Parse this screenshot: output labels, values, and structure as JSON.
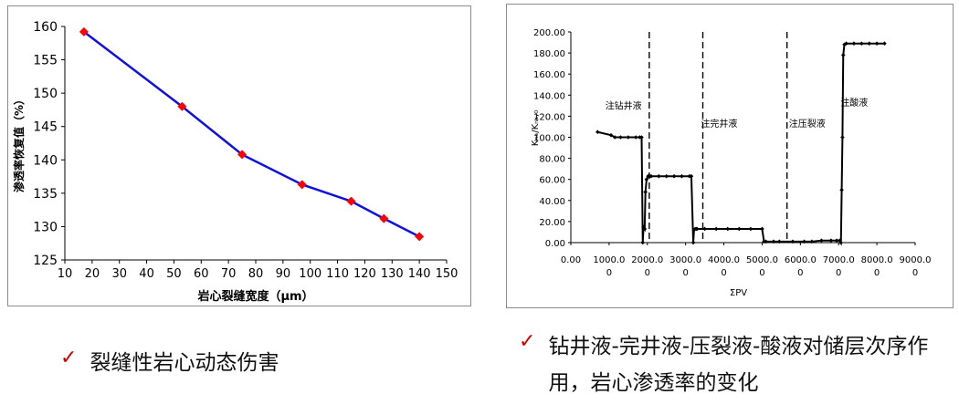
{
  "chart_data": [
    {
      "type": "line",
      "title": "",
      "xlabel": "岩心裂缝宽度（μm）",
      "ylabel": "渗透率恢复值（%）",
      "xlim": [
        10,
        150
      ],
      "ylim": [
        125,
        160
      ],
      "xticks": [
        "10",
        "20",
        "30",
        "40",
        "50",
        "60",
        "70",
        "80",
        "90",
        "100",
        "110",
        "120",
        "130",
        "140",
        "150"
      ],
      "yticks": [
        "125",
        "130",
        "135",
        "140",
        "145",
        "150",
        "155",
        "160"
      ],
      "grid": false,
      "line_color": "#1010e0",
      "marker_color": "#ff0000",
      "x": [
        17,
        53,
        75,
        97,
        115,
        127,
        140
      ],
      "y": [
        159.2,
        148.0,
        140.8,
        136.3,
        133.8,
        131.2,
        128.5
      ]
    },
    {
      "type": "line",
      "title": "",
      "xlabel": "ΣPV",
      "ylabel": "Kₙₐ/Kₙₐ,₀",
      "xlim": [
        0,
        9000
      ],
      "ylim": [
        0,
        200
      ],
      "xticks": [
        "0.00",
        "1000.0\n0",
        "2000.0\n0",
        "3000.0\n0",
        "4000.0\n0",
        "5000.0\n0",
        "6000.0\n0",
        "7000.0\n0",
        "8000.0\n0",
        "9000.0\n0"
      ],
      "yticks": [
        "0.00",
        "20.00",
        "40.00",
        "60.00",
        "80.00",
        "100.00",
        "120.00",
        "140.00",
        "160.00",
        "180.00",
        "200.00"
      ],
      "grid": false,
      "line_color": "#000000",
      "marker_color": "#000000",
      "dashed_lines": [
        2050,
        3450,
        5650
      ],
      "annotations": [
        {
          "text": "注钻井液",
          "x": 900,
          "y": 127
        },
        {
          "text": "注完井液",
          "x": 3400,
          "y": 110
        },
        {
          "text": "注压裂液",
          "x": 5700,
          "y": 110
        },
        {
          "text": "注酸液",
          "x": 7050,
          "y": 130
        }
      ],
      "x": [
        700,
        1050,
        1150,
        1300,
        1500,
        1700,
        1800,
        1850,
        1880,
        1900,
        1930,
        1950,
        1980,
        2020,
        2060,
        2100,
        2300,
        2500,
        2700,
        2900,
        3100,
        3150,
        3200,
        3220,
        3250,
        3280,
        3300,
        3500,
        3800,
        4100,
        4400,
        4700,
        5000,
        5050,
        5100,
        5300,
        5450,
        5800,
        6100,
        6300,
        6550,
        6800,
        6950,
        7030,
        7060,
        7080,
        7100,
        7120,
        7150,
        7200,
        7400,
        7600,
        7800,
        8000,
        8200
      ],
      "y": [
        105,
        102,
        100,
        100,
        100,
        100,
        100,
        100,
        0,
        15,
        13,
        48,
        60,
        63,
        63,
        63,
        63,
        63,
        63,
        63,
        63,
        63,
        0,
        12,
        13,
        13,
        13,
        13,
        13,
        13,
        13,
        13,
        13,
        1,
        1,
        1,
        1,
        1,
        1,
        1,
        2,
        2,
        2,
        2,
        0,
        50,
        100,
        178,
        188,
        189,
        189,
        189,
        189,
        189,
        189
      ]
    }
  ],
  "captions": {
    "left": "裂缝性岩心动态伤害",
    "right": "钻井液-完井液-压裂液-酸液对储层次序作用，岩心渗透率的变化"
  },
  "icons": {
    "check": "check-icon"
  }
}
